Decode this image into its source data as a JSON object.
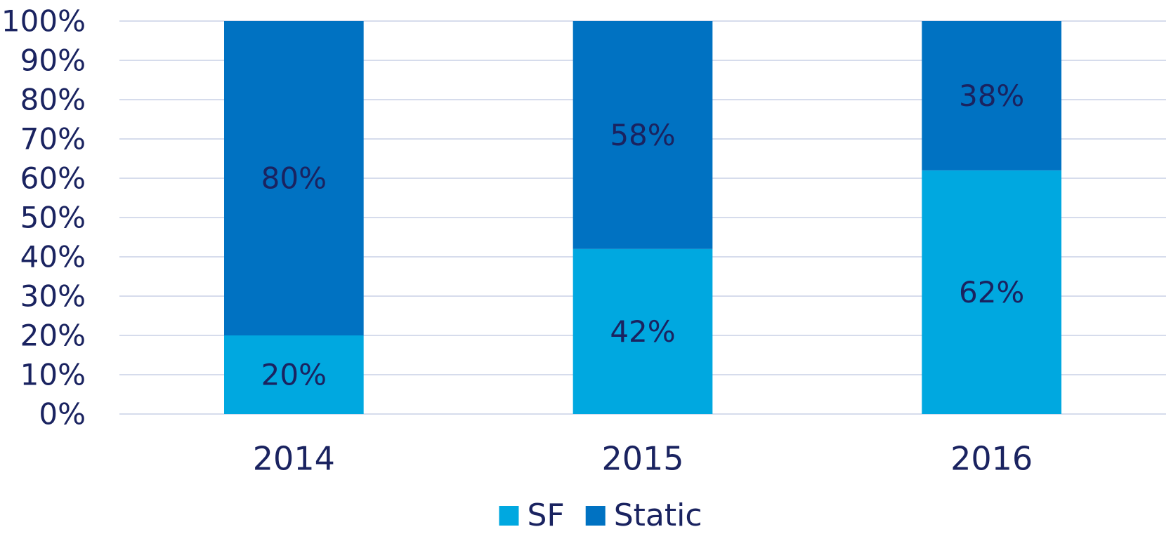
{
  "chart_data": {
    "type": "stacked_bar",
    "categories": [
      "2014",
      "2015",
      "2016"
    ],
    "series": [
      {
        "name": "SF",
        "color": "#00a8e0",
        "values": [
          20,
          42,
          62
        ],
        "value_labels": [
          "20%",
          "42%",
          "62%"
        ]
      },
      {
        "name": "Static",
        "color": "#0072c2",
        "values": [
          80,
          58,
          38
        ],
        "value_labels": [
          "80%",
          "58%",
          "38%"
        ]
      }
    ],
    "ylim": [
      0,
      100
    ],
    "yticks": [
      {
        "value": 0,
        "label": "0%"
      },
      {
        "value": 10,
        "label": "10%"
      },
      {
        "value": 20,
        "label": "20%"
      },
      {
        "value": 30,
        "label": "30%"
      },
      {
        "value": 40,
        "label": "40%"
      },
      {
        "value": 50,
        "label": "50%"
      },
      {
        "value": 60,
        "label": "60%"
      },
      {
        "value": 70,
        "label": "70%"
      },
      {
        "value": 80,
        "label": "80%"
      },
      {
        "value": 90,
        "label": "90%"
      },
      {
        "value": 100,
        "label": "100%"
      }
    ],
    "grid": true,
    "legend": "bottom"
  }
}
